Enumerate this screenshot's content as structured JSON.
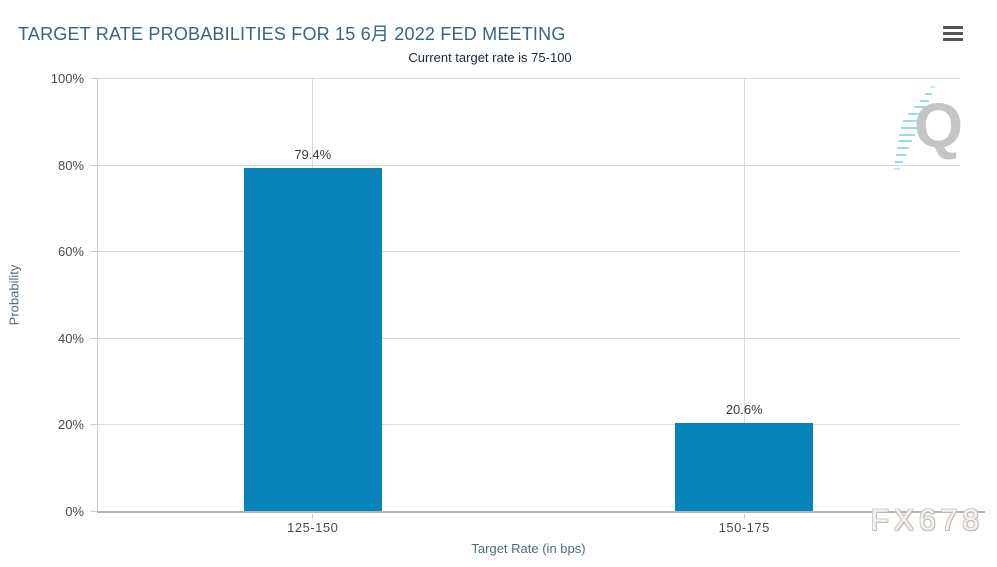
{
  "header": {
    "title": "TARGET RATE PROBABILITIES FOR 15 6月 2022 FED MEETING",
    "subtitle": "Current target rate is 75-100"
  },
  "chart_data": {
    "type": "bar",
    "title": "TARGET RATE PROBABILITIES FOR 15 6月 2022 FED MEETING",
    "subtitle": "Current target rate is 75-100",
    "categories": [
      "125-150",
      "150-175"
    ],
    "values": [
      79.4,
      20.6
    ],
    "value_labels": [
      "79.4%",
      "20.6%"
    ],
    "xlabel": "Target Rate (in bps)",
    "ylabel": "Probability",
    "ylim": [
      0,
      100
    ],
    "ytick_step": 20,
    "ytick_suffix": "%",
    "grid": true,
    "legend": "none",
    "bar_color": "#0684ba"
  },
  "watermarks": {
    "logo_letter": "Q",
    "site": "FX678"
  },
  "colors": {
    "bar": "#0684ba",
    "title_text": "#3c6380",
    "subtitle_text": "#1b2a3a",
    "gridline": "#d9d9d9",
    "axis_line": "#b5b5b5",
    "logo_dash": "#8ed9e9",
    "logo_letter": "#c5c5c5"
  }
}
